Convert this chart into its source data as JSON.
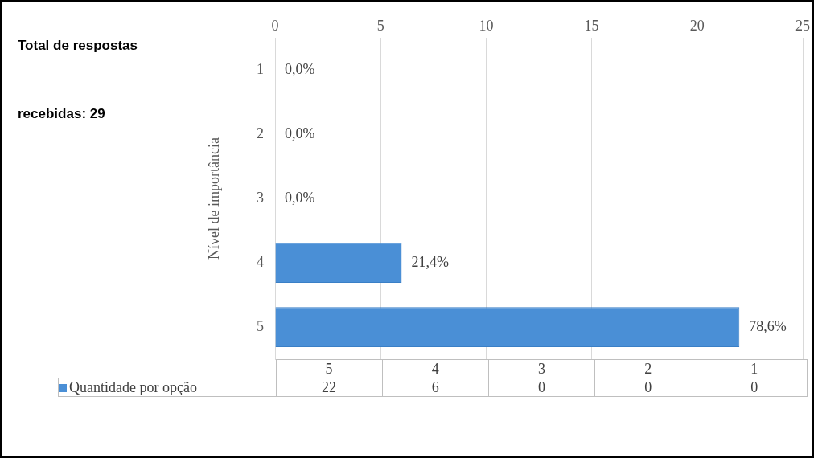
{
  "chart_data": {
    "type": "bar",
    "orientation": "horizontal",
    "title": "Total de respostas recebidas: 29",
    "ylabel": "Nível de importância",
    "categories": [
      "1",
      "2",
      "3",
      "4",
      "5"
    ],
    "series": [
      {
        "name": "Quantidade por opção",
        "color": "#4a8fd6",
        "values": [
          0,
          0,
          0,
          6,
          22
        ]
      }
    ],
    "annotations": [
      "22",
      "6",
      "0",
      "0",
      "0",
      {
        "text": "0,0%",
        "x": 0,
        "y": "1"
      },
      {
        "text": "0,0%",
        "x": 0,
        "y": "2"
      },
      {
        "text": "0,0%",
        "x": 0,
        "y": "3"
      },
      {
        "text": "21,4%",
        "x": 6,
        "y": "4"
      },
      {
        "text": "78,6%",
        "x": 22,
        "y": "5"
      }
    ],
    "xlim": [
      0,
      25
    ],
    "xticks": [
      0,
      5,
      10,
      15,
      20,
      25
    ],
    "grid": "x",
    "legend": "bottom"
  }
}
